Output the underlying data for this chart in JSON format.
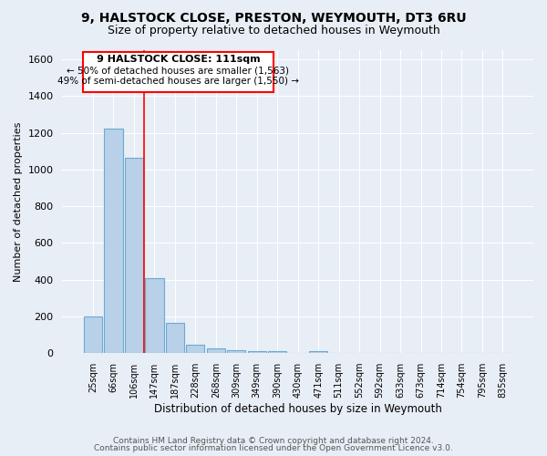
{
  "title1": "9, HALSTOCK CLOSE, PRESTON, WEYMOUTH, DT3 6RU",
  "title2": "Size of property relative to detached houses in Weymouth",
  "xlabel": "Distribution of detached houses by size in Weymouth",
  "ylabel": "Number of detached properties",
  "categories": [
    "25sqm",
    "66sqm",
    "106sqm",
    "147sqm",
    "187sqm",
    "228sqm",
    "268sqm",
    "309sqm",
    "349sqm",
    "390sqm",
    "430sqm",
    "471sqm",
    "511sqm",
    "552sqm",
    "592sqm",
    "633sqm",
    "673sqm",
    "714sqm",
    "754sqm",
    "795sqm",
    "835sqm"
  ],
  "values": [
    202,
    1225,
    1065,
    410,
    165,
    47,
    25,
    18,
    12,
    12,
    0,
    12,
    0,
    0,
    0,
    0,
    0,
    0,
    0,
    0,
    0
  ],
  "bar_color": "#b8d0e8",
  "bar_edge_color": "#6aaad4",
  "background_color": "#e8eef5",
  "grid_color": "#ffffff",
  "red_line_x": 2.5,
  "annotation_title": "9 HALSTOCK CLOSE: 111sqm",
  "annotation_line1": "← 50% of detached houses are smaller (1,563)",
  "annotation_line2": "49% of semi-detached houses are larger (1,550) →",
  "footer1": "Contains HM Land Registry data © Crown copyright and database right 2024.",
  "footer2": "Contains public sector information licensed under the Open Government Licence v3.0.",
  "ylim": [
    0,
    1650
  ],
  "yticks": [
    0,
    200,
    400,
    600,
    800,
    1000,
    1200,
    1400,
    1600
  ]
}
